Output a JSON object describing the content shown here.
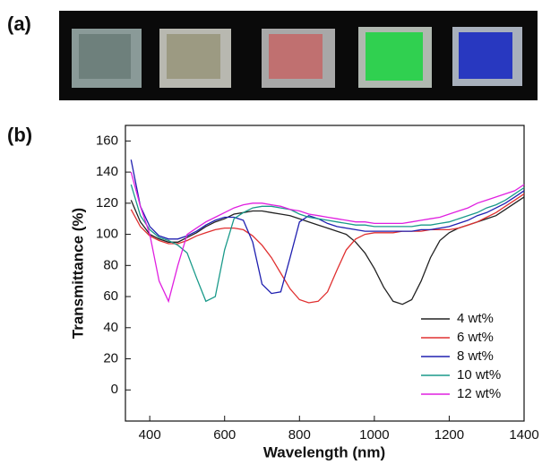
{
  "photo_label": "(a)",
  "chart_data": {
    "type": "line",
    "panel_label": "(b)",
    "x_label": "Wavelength (nm)",
    "y_label": "Transmittance (%)",
    "xlim": [
      335,
      1400
    ],
    "ylim": [
      -20,
      170
    ],
    "xticks": [
      400,
      600,
      800,
      1000,
      1200,
      1400
    ],
    "yticks": [
      0,
      20,
      40,
      60,
      80,
      100,
      120,
      140,
      160
    ],
    "legend": "lower right",
    "x": [
      350,
      375,
      400,
      425,
      450,
      475,
      500,
      525,
      550,
      575,
      600,
      625,
      650,
      675,
      700,
      725,
      750,
      775,
      800,
      825,
      850,
      875,
      900,
      925,
      950,
      975,
      1000,
      1025,
      1050,
      1075,
      1100,
      1125,
      1150,
      1175,
      1200,
      1225,
      1250,
      1275,
      1300,
      1325,
      1350,
      1375,
      1400
    ],
    "series": [
      {
        "name": "4 wt%",
        "color": "#222222",
        "values": [
          122,
          108,
          100,
          97,
          95,
          95,
          98,
          101,
          105,
          108,
          110,
          113,
          114,
          115,
          115,
          114,
          113,
          112,
          110,
          108,
          106,
          104,
          102,
          100,
          95,
          88,
          78,
          66,
          57,
          55,
          58,
          70,
          85,
          96,
          101,
          104,
          106,
          108,
          110,
          112,
          116,
          120,
          124
        ]
      },
      {
        "name": "6 wt%",
        "color": "#e03030",
        "values": [
          116,
          105,
          99,
          96,
          94,
          94,
          96,
          99,
          101,
          103,
          104,
          104,
          103,
          99,
          93,
          85,
          75,
          65,
          58,
          56,
          57,
          63,
          77,
          90,
          97,
          100,
          101,
          101,
          101,
          102,
          102,
          102,
          103,
          103,
          103,
          104,
          106,
          108,
          111,
          114,
          118,
          122,
          126
        ]
      },
      {
        "name": "8 wt%",
        "color": "#2020b0",
        "values": [
          148,
          118,
          105,
          99,
          97,
          97,
          99,
          102,
          106,
          109,
          111,
          111,
          109,
          95,
          68,
          62,
          63,
          85,
          108,
          112,
          110,
          107,
          105,
          104,
          103,
          102,
          102,
          102,
          102,
          102,
          102,
          103,
          103,
          104,
          105,
          107,
          109,
          112,
          114,
          117,
          120,
          124,
          128
        ]
      },
      {
        "name": "10 wt%",
        "color": "#1a9a8a",
        "values": [
          132,
          112,
          103,
          98,
          96,
          93,
          88,
          72,
          57,
          60,
          90,
          110,
          114,
          117,
          118,
          118,
          117,
          116,
          113,
          111,
          110,
          109,
          108,
          107,
          106,
          106,
          105,
          105,
          105,
          105,
          105,
          106,
          106,
          107,
          108,
          110,
          112,
          114,
          117,
          119,
          122,
          126,
          130
        ]
      },
      {
        "name": "12 wt%",
        "color": "#e020e0",
        "values": [
          140,
          118,
          100,
          70,
          57,
          80,
          100,
          104,
          108,
          111,
          114,
          117,
          119,
          120,
          120,
          119,
          118,
          116,
          115,
          113,
          112,
          111,
          110,
          109,
          108,
          108,
          107,
          107,
          107,
          107,
          108,
          109,
          110,
          111,
          113,
          115,
          117,
          120,
          122,
          124,
          126,
          128,
          132
        ]
      }
    ]
  }
}
